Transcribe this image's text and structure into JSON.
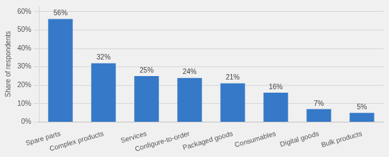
{
  "chart_data": {
    "type": "bar",
    "categories": [
      "Spare parts",
      "Complex products",
      "Services",
      "Configure-to-order",
      "Packaged goods",
      "Consumables",
      "Digital goods",
      "Bulk products"
    ],
    "values": [
      56,
      32,
      25,
      24,
      21,
      16,
      7,
      5
    ],
    "value_labels": [
      "56%",
      "32%",
      "25%",
      "24%",
      "21%",
      "16%",
      "7%",
      "5%"
    ],
    "data_labels": true,
    "color": "#3579c8",
    "ylabel": "Share of respondents",
    "ylim": [
      0,
      63
    ],
    "yticks": [
      {
        "value": 0,
        "label": "0%"
      },
      {
        "value": 10,
        "label": "10%"
      },
      {
        "value": 20,
        "label": "20%"
      },
      {
        "value": 30,
        "label": "30%"
      },
      {
        "value": 40,
        "label": "40%"
      },
      {
        "value": 50,
        "label": "50%"
      },
      {
        "value": 60,
        "label": "60%"
      }
    ],
    "grid": true
  }
}
